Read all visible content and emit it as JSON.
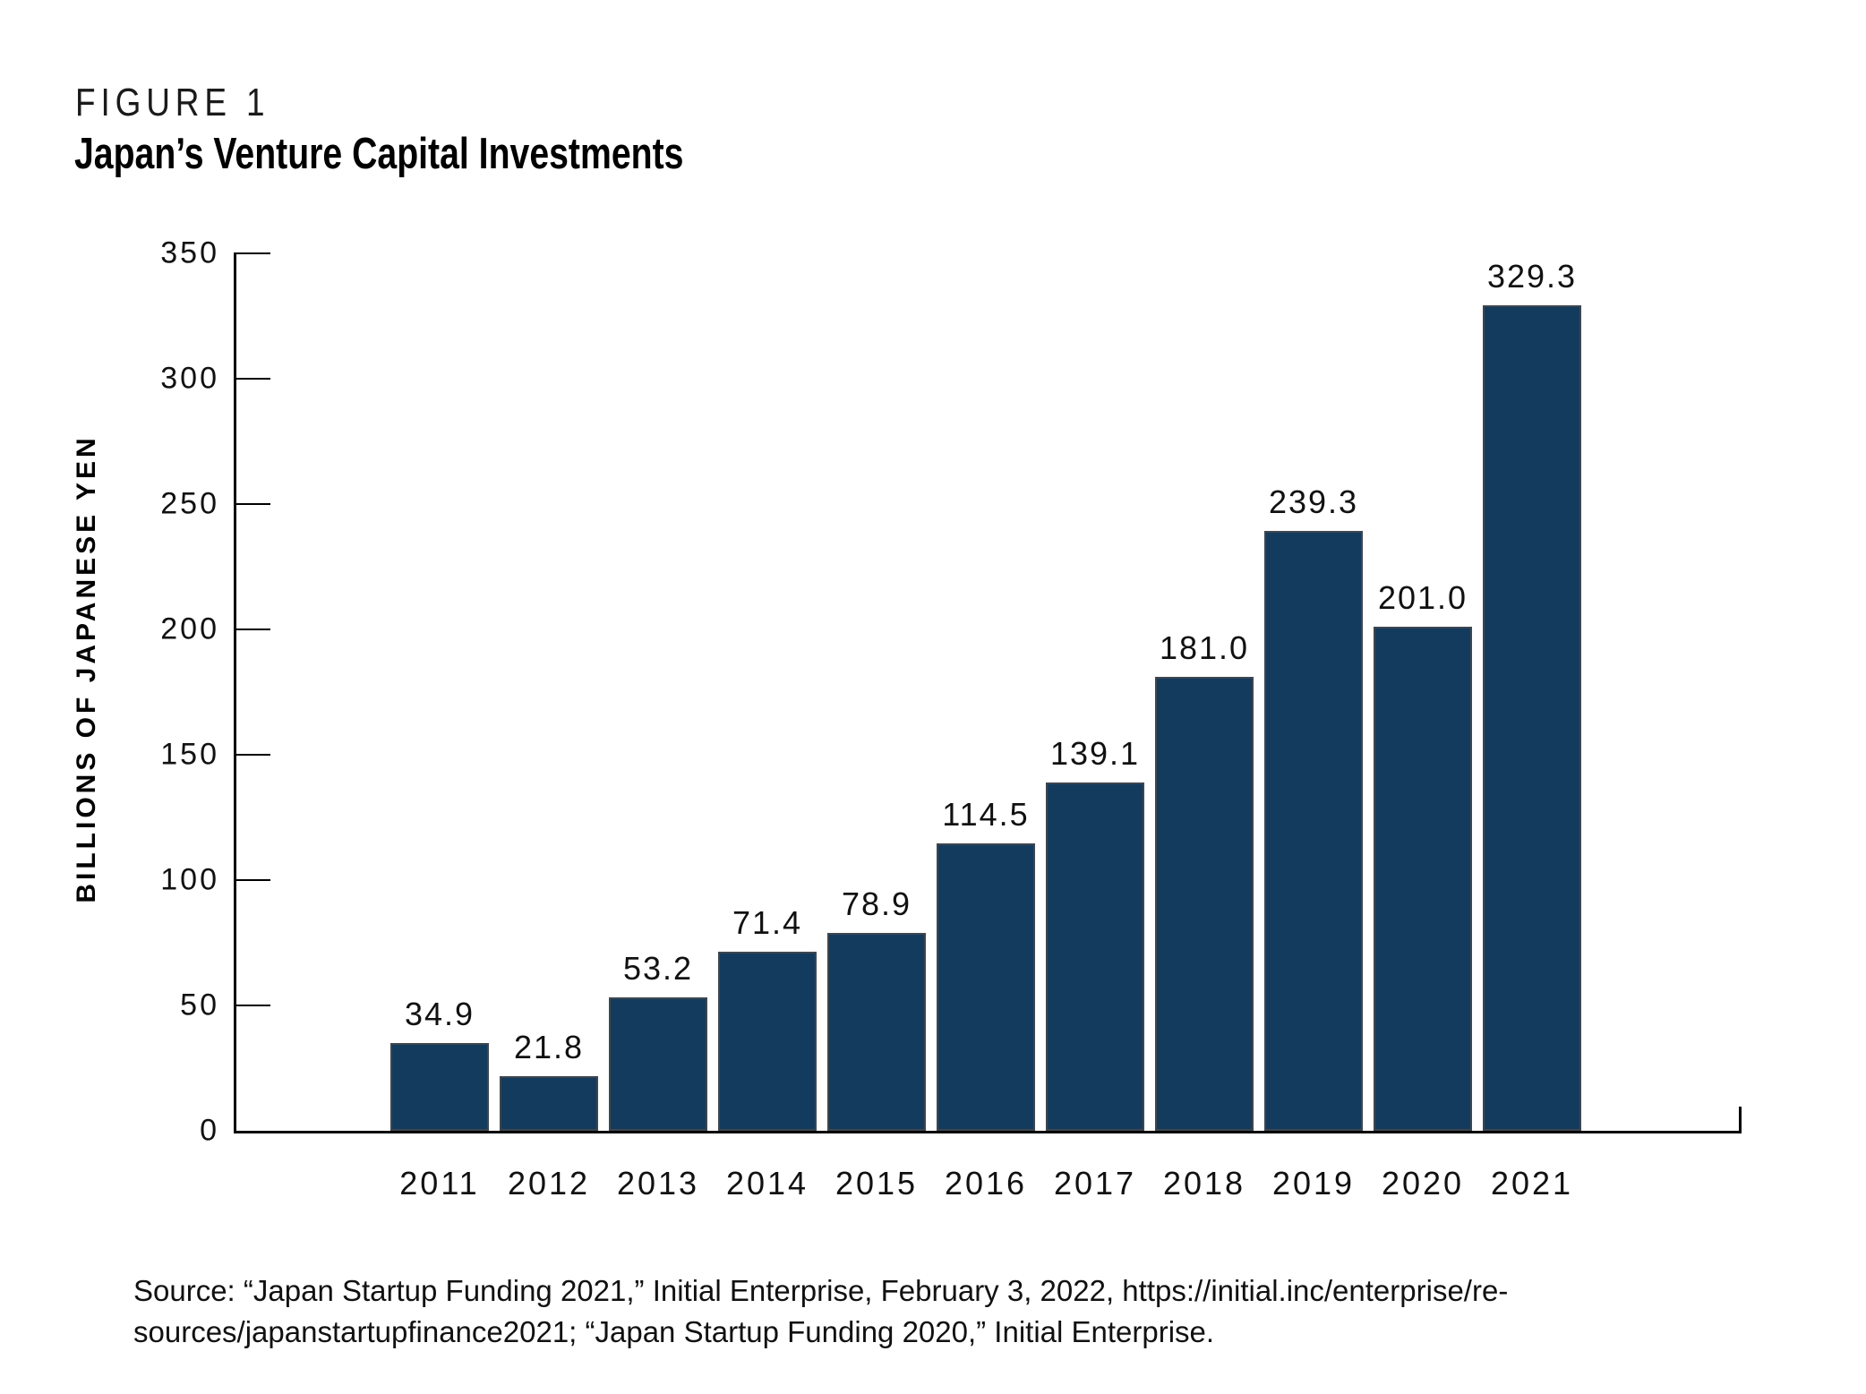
{
  "figure": {
    "label": "FIGURE 1",
    "title": "Japan’s Venture Capital Investments"
  },
  "chart_data": {
    "type": "bar",
    "title": "Japan’s Venture Capital Investments",
    "categories": [
      "2011",
      "2012",
      "2013",
      "2014",
      "2015",
      "2016",
      "2017",
      "2018",
      "2019",
      "2020",
      "2021"
    ],
    "values": [
      34.9,
      21.8,
      53.2,
      71.4,
      78.9,
      114.5,
      139.1,
      181.0,
      239.3,
      201.0,
      329.3
    ],
    "value_labels": [
      "34.9",
      "21.8",
      "53.2",
      "71.4",
      "78.9",
      "114.5",
      "139.1",
      "181.0",
      "239.3",
      "201.0",
      "329.3"
    ],
    "xlabel": "",
    "ylabel": "BILLIONS OF JAPANESE YEN",
    "ylim": [
      0,
      350
    ],
    "ytick_step": 50,
    "yticks": [
      0,
      50,
      100,
      150,
      200,
      250,
      300,
      350
    ],
    "grid": false,
    "legend": "none",
    "bar_color": "#133b5e",
    "bar_edge_color": "#3e464e",
    "axis_color": "#000000"
  },
  "source": {
    "lines": [
      "Source: “Japan Startup Funding 2021,” Initial Enterprise, February 3, 2022, https://initial.inc/enterprise/re-",
      "sources/japanstartupfinance2021; “Japan Startup Funding 2020,” Initial Enterprise."
    ]
  }
}
